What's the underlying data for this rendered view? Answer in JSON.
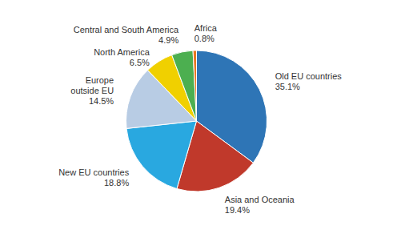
{
  "chart_data": {
    "type": "pie",
    "categories": [
      "Old EU countries",
      "Asia and Oceania",
      "New EU countries",
      "Europe\noutside EU",
      "North America",
      "Central and South America",
      "Africa"
    ],
    "values": [
      35.1,
      19.4,
      18.8,
      14.5,
      6.5,
      4.9,
      0.8
    ],
    "value_labels": [
      "35.1%",
      "19.4%",
      "18.8%",
      "14.5%",
      "6.5%",
      "4.9%",
      "0.8%"
    ],
    "colors": [
      "#2E75B6",
      "#C0392B",
      "#29A8E0",
      "#B8CCE4",
      "#F0D000",
      "#4CAF50",
      "#E87722"
    ],
    "data_labels": true
  }
}
